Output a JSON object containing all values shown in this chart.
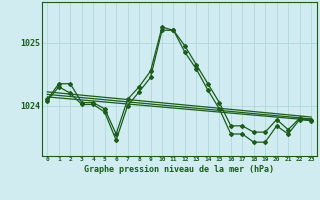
{
  "background_color": "#d0ecf0",
  "plot_bg_color": "#d0ecf0",
  "grid_color": "#b0d8de",
  "line_color": "#1a5c1a",
  "marker_color": "#1a5c1a",
  "xlabel": "Graphe pression niveau de la mer (hPa)",
  "ylim": [
    1023.2,
    1025.65
  ],
  "yticks": [
    1024,
    1025
  ],
  "xlim": [
    -0.5,
    23.5
  ],
  "xticks": [
    0,
    1,
    2,
    3,
    4,
    5,
    6,
    7,
    8,
    9,
    10,
    11,
    12,
    13,
    14,
    15,
    16,
    17,
    18,
    19,
    20,
    21,
    22,
    23
  ],
  "series1": {
    "x": [
      0,
      1,
      2,
      3,
      4,
      5,
      6,
      7,
      8,
      9,
      10,
      11,
      12,
      13,
      14,
      15,
      16,
      17,
      18,
      19,
      20,
      21,
      22,
      23
    ],
    "y": [
      1024.1,
      1024.35,
      1024.35,
      1024.05,
      1024.05,
      1023.95,
      1023.55,
      1024.1,
      1024.3,
      1024.55,
      1025.25,
      1025.2,
      1024.95,
      1024.65,
      1024.35,
      1024.05,
      1023.68,
      1023.68,
      1023.58,
      1023.58,
      1023.78,
      1023.62,
      1023.8,
      1023.78
    ]
  },
  "series2": {
    "x": [
      0,
      1,
      2,
      3,
      4,
      5,
      6,
      7,
      8,
      9,
      10,
      11,
      12,
      13,
      14,
      15,
      16,
      17,
      18,
      19,
      20,
      21,
      22,
      23
    ],
    "y": [
      1024.08,
      1024.3,
      1024.2,
      1024.02,
      1024.02,
      1023.9,
      1023.45,
      1024.0,
      1024.22,
      1024.45,
      1025.2,
      1025.2,
      1024.85,
      1024.58,
      1024.25,
      1023.95,
      1023.55,
      1023.55,
      1023.42,
      1023.42,
      1023.68,
      1023.55,
      1023.78,
      1023.76
    ]
  },
  "trend1": {
    "x": [
      0,
      23
    ],
    "y": [
      1024.22,
      1023.82
    ]
  },
  "trend2": {
    "x": [
      0,
      23
    ],
    "y": [
      1024.18,
      1023.79
    ]
  },
  "trend3": {
    "x": [
      0,
      23
    ],
    "y": [
      1024.14,
      1023.77
    ]
  }
}
